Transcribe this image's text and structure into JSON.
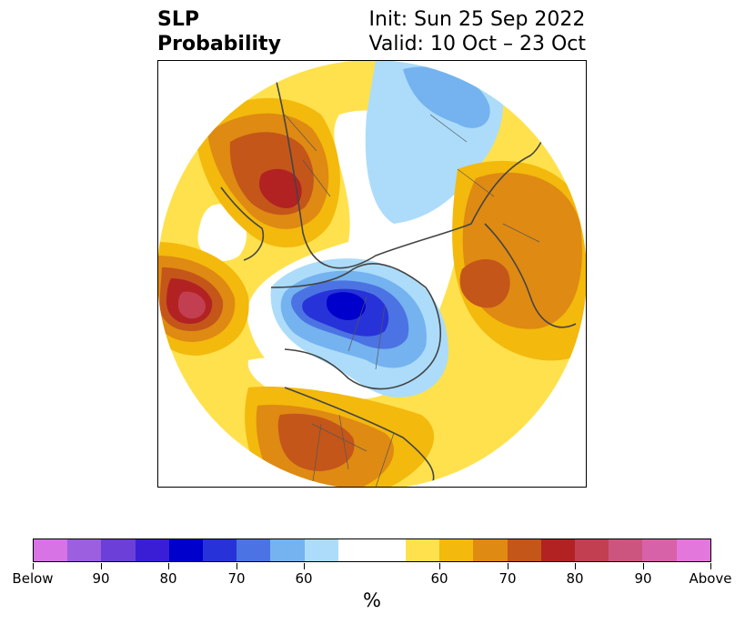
{
  "title": {
    "left_line1": "SLP",
    "left_line2": "Probability",
    "right_line1": "Init: Sun 25 Sep 2022",
    "right_line2": "Valid: 10 Oct – 23 Oct"
  },
  "map": {
    "projection": "north-polar-stereographic",
    "regions": [
      {
        "name": "arctic-low",
        "category": "below",
        "level": 80,
        "color": "#0000cc"
      },
      {
        "name": "north-pacific-high",
        "category": "above",
        "level": 80,
        "color": "#c23f52"
      },
      {
        "name": "western-europe-high",
        "category": "above",
        "level": 80,
        "color": "#b22222"
      },
      {
        "name": "east-asia-high",
        "category": "above",
        "level": 70,
        "color": "#c4561a"
      },
      {
        "name": "siberia-low",
        "category": "below",
        "level": 60,
        "color": "#74b3ef"
      },
      {
        "name": "western-us-high",
        "category": "above",
        "level": 70,
        "color": "#c4561a"
      }
    ]
  },
  "colorbar": {
    "colors": [
      "#d873e6",
      "#9b5fe0",
      "#6b3fd8",
      "#3a1ed6",
      "#0000cc",
      "#2733d8",
      "#4c73e3",
      "#74b3ef",
      "#acdcfa",
      "#ffffff",
      "#ffe14d",
      "#f3b90c",
      "#df8a12",
      "#c4561a",
      "#b22222",
      "#c23f52",
      "#cc5580",
      "#d862a8",
      "#e377db"
    ],
    "ticks": [
      "Below",
      "90",
      "80",
      "70",
      "60",
      "60",
      "70",
      "80",
      "90",
      "Above"
    ],
    "unit": "%"
  }
}
